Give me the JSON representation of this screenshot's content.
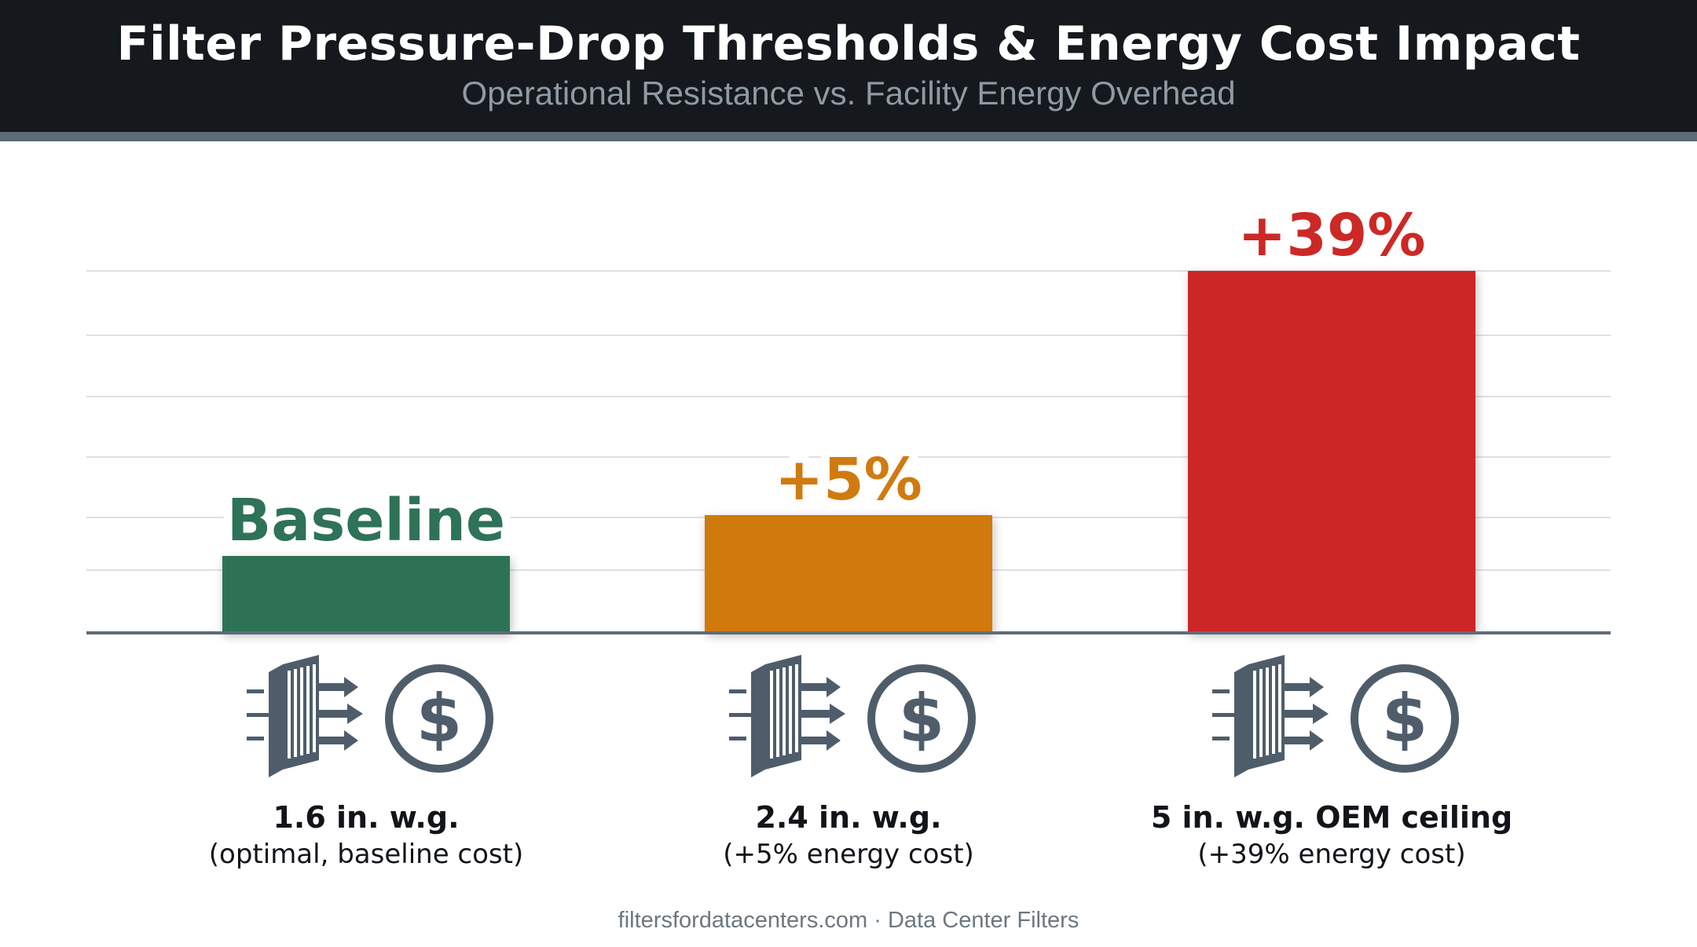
{
  "header": {
    "title": "Filter Pressure-Drop Thresholds & Energy Cost Impact",
    "subtitle": "Operational Resistance vs. Facility Energy Overhead"
  },
  "colors": {
    "header_bg": "#15191d",
    "accent_stripe": "#5c6b78",
    "baseline": "#2e7257",
    "moderate": "#d07a10",
    "high": "#cc2826",
    "icon": "#4f5d6b"
  },
  "chart_data": {
    "type": "bar",
    "title": "Filter Pressure-Drop Thresholds & Energy Cost Impact",
    "subtitle": "Operational Resistance vs. Facility Energy Overhead",
    "categories": [
      {
        "primary": "1.6 in. w.g.",
        "secondary": "(optimal, baseline cost)"
      },
      {
        "primary": "2.4 in. w.g.",
        "secondary": "(+5% energy cost)"
      },
      {
        "primary": "5 in. w.g. OEM ceiling",
        "secondary": "(+39% energy cost)"
      }
    ],
    "pressure_drop_in_wg": [
      1.6,
      2.4,
      5
    ],
    "energy_cost_increase_pct": [
      0,
      5,
      39
    ],
    "bar_labels": [
      "Baseline",
      "+5%",
      "+39%"
    ],
    "bar_colors": [
      "#2e7257",
      "#d07a10",
      "#cc2826"
    ],
    "grid": true,
    "icons": [
      "filter-airflow-icon",
      "dollar-icon"
    ]
  },
  "footer": {
    "text": "filtersfordatacenters.com · Data Center Filters"
  }
}
